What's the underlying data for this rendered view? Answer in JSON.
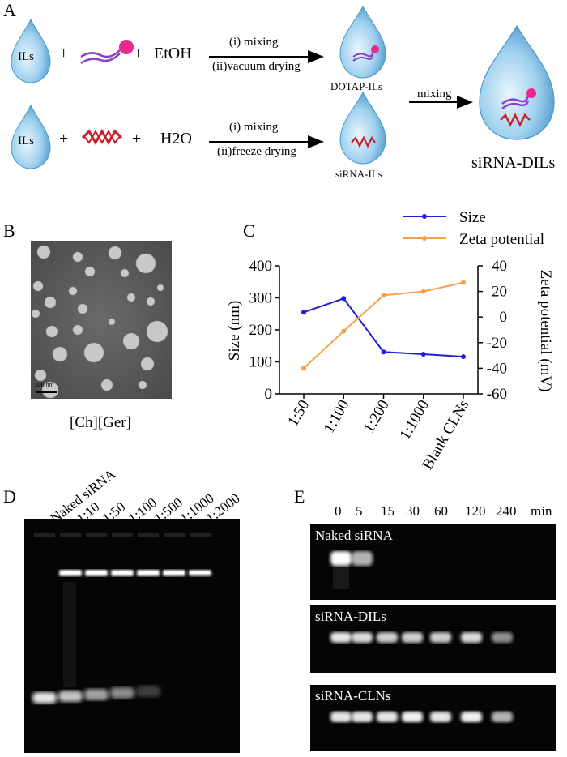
{
  "panelA": {
    "letter": "A",
    "drop_label": "ILs",
    "plus": "+",
    "row1_solvent": "EtOH",
    "row1_step1": "(i) mixing",
    "row1_step2": "(ii)vacuum drying",
    "row1_product": "DOTAP-ILs",
    "row2_solvent": "H2O",
    "row2_step1": "(i) mixing",
    "row2_step2": "(ii)freeze drying",
    "row2_product": "siRNA-ILs",
    "final_step": "mixing",
    "final_product": "siRNA-DILs",
    "colors": {
      "drop": "#5aa9d6",
      "lipid_head": "#e8288a",
      "lipid_tail": "#8a3fc8",
      "sirna": "#c8202a"
    }
  },
  "panelB": {
    "letter": "B",
    "scale_bar": "100 nm",
    "caption": "[Ch][Ger]"
  },
  "panelC": {
    "letter": "C",
    "legend": [
      "Size",
      "Zeta potential"
    ]
  },
  "chart_data": {
    "type": "line",
    "categories": [
      "1:50",
      "1:100",
      "1:200",
      "1:1000",
      "Blank CLNs"
    ],
    "ylabel": "Size (nm)",
    "ylabel_right": "Zeta potential (mV)",
    "ylim": [
      0,
      400
    ],
    "ylim_right": [
      -60,
      40
    ],
    "yticks": [
      "0",
      "100",
      "200",
      "300",
      "400"
    ],
    "yticks_right": [
      "-60",
      "-40",
      "-20",
      "0",
      "20",
      "40"
    ],
    "legend_position": "top-right",
    "series": [
      {
        "name": "Size",
        "axis": "left",
        "color": "#1f1fd8",
        "values": [
          255,
          298,
          131,
          124,
          116
        ]
      },
      {
        "name": "Zeta potential",
        "axis": "right",
        "color": "#f5a04a",
        "values": [
          -40,
          -11,
          17,
          20,
          27
        ]
      }
    ]
  },
  "panelD": {
    "letter": "D",
    "lanes": [
      "Naked siRNA",
      "1:10",
      "1:50",
      "1:100",
      "1:500",
      "1:1000",
      "1:2000"
    ]
  },
  "panelE": {
    "letter": "E",
    "times": [
      "0",
      "5",
      "15",
      "30",
      "60",
      "120",
      "240"
    ],
    "unit": "min",
    "gels": [
      "Naked siRNA",
      "siRNA-DILs",
      "siRNA-CLNs"
    ]
  }
}
